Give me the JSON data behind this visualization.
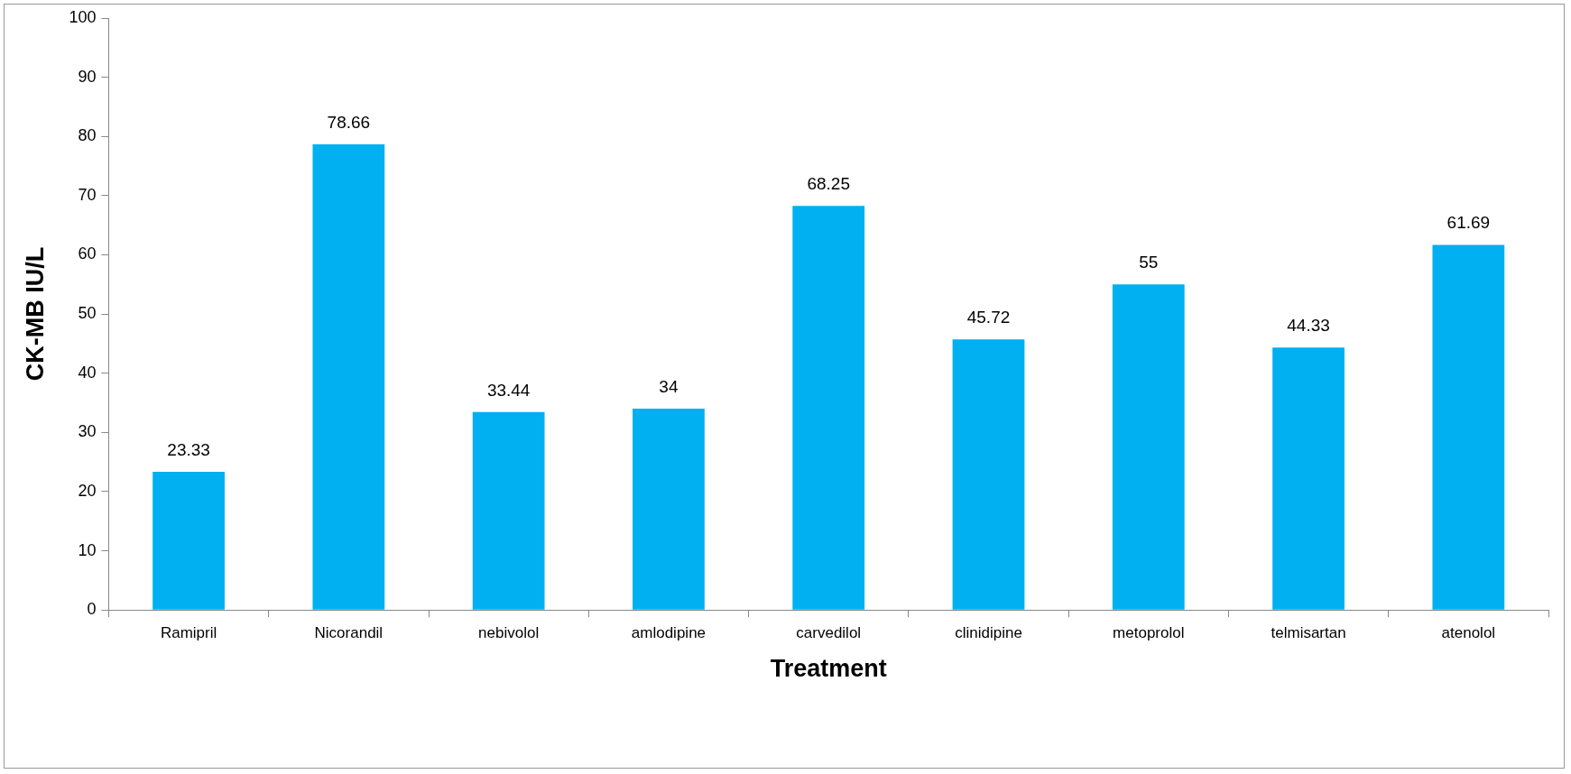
{
  "chart_data": {
    "type": "bar",
    "xlabel": "Treatment",
    "ylabel": "CK-MB IU/L",
    "categories": [
      "Ramipril",
      "Nicorandil",
      "nebivolol",
      "amlodipine",
      "carvedilol",
      "clinidipine",
      "metoprolol",
      "telmisartan",
      "atenolol"
    ],
    "values": [
      23.33,
      78.66,
      33.44,
      34,
      68.25,
      45.72,
      55,
      44.33,
      61.69
    ],
    "color": "#00b0f0",
    "ylim": [
      0,
      100
    ],
    "yticks": [
      0,
      10,
      20,
      30,
      40,
      50,
      60,
      70,
      80,
      90,
      100
    ],
    "grid": false,
    "legend": false,
    "data_labels": true
  }
}
